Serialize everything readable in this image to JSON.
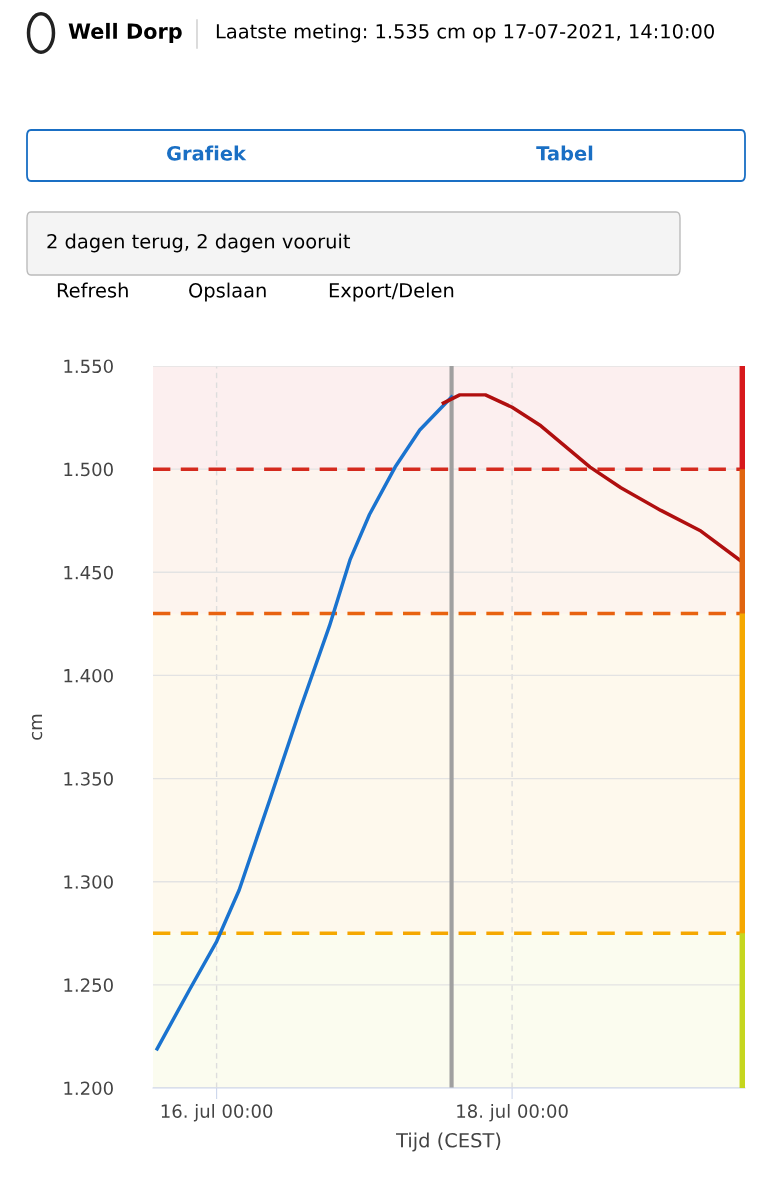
{
  "chart_data": {
    "type": "line",
    "title": "Well Dorp",
    "subtitle": "Laatste meting: 1.535 cm op 17-07-2021, 14:10:00",
    "annotations": [
      "Grafiek",
      "Tabel",
      "2 dagen terug, 2 dagen vooruit",
      "Refresh",
      "Opslaan",
      "Export/Delen"
    ],
    "xlabel": "Tijd (CEST)",
    "ylabel": "cm",
    "series": [
      {
        "color": "#1a73cf",
        "x": [
          "2021-07-15T14:20",
          "2021-07-15T19:40",
          "2021-07-16T00:00",
          "2021-07-16T03:40",
          "2021-07-16T08:40",
          "2021-07-16T13:30",
          "2021-07-16T18:20",
          "2021-07-16T21:40",
          "2021-07-17T00:50",
          "2021-07-17T05:00",
          "2021-07-17T09:00",
          "2021-07-17T14:10"
        ],
        "values": [
          1.219,
          1.248,
          1.271,
          1.296,
          1.34,
          1.383,
          1.424,
          1.456,
          1.478,
          1.501,
          1.519,
          1.535
        ]
      },
      {
        "color": "#b00f0f",
        "x": [
          "2021-07-17T12:50",
          "2021-07-17T15:30",
          "2021-07-17T19:40",
          "2021-07-18T00:00",
          "2021-07-18T04:40",
          "2021-07-18T12:40",
          "2021-07-18T17:40",
          "2021-07-19T00:10",
          "2021-07-19T06:40",
          "2021-07-19T13:50"
        ],
        "values": [
          1.532,
          1.536,
          1.536,
          1.53,
          1.521,
          1.501,
          1.491,
          1.48,
          1.47,
          1.454
        ]
      }
    ],
    "xlim": [
      "2021-07-15T13:40",
      "2021-07-19T13:50"
    ],
    "xticks": [
      {
        "value": "2021-07-16T00:00",
        "label": "16. jul 00:00"
      },
      {
        "value": "2021-07-18T00:00",
        "label": "18. jul 00:00"
      }
    ],
    "ylim": [
      1.2,
      1.55
    ],
    "yticks": [
      {
        "value": 1.2,
        "label": "1.200"
      },
      {
        "value": 1.25,
        "label": "1.250"
      },
      {
        "value": 1.3,
        "label": "1.300"
      },
      {
        "value": 1.35,
        "label": "1.350"
      },
      {
        "value": 1.4,
        "label": "1.400"
      },
      {
        "value": 1.45,
        "label": "1.450"
      },
      {
        "value": 1.5,
        "label": "1.500"
      },
      {
        "value": 1.55,
        "label": "1.550"
      }
    ],
    "ref_lines": [
      {
        "axis": "y",
        "value": 1.5,
        "color": "#d42a1e",
        "line_style": "dashed"
      },
      {
        "axis": "y",
        "value": 1.43,
        "color": "#e8620f",
        "line_style": "dashed"
      },
      {
        "axis": "y",
        "value": 1.275,
        "color": "#f5a800",
        "line_style": "dashed"
      },
      {
        "axis": "x",
        "value": "2021-07-17T14:10",
        "color": "#a0a0a0",
        "line_style": "solid"
      }
    ],
    "bands": [
      {
        "axis": "y",
        "from": 1.5,
        "to": 1.55,
        "color": "#d7191c"
      },
      {
        "axis": "y",
        "from": 1.43,
        "to": 1.5,
        "color": "#e0640f"
      },
      {
        "axis": "y",
        "from": 1.275,
        "to": 1.43,
        "color": "#f5a800"
      },
      {
        "axis": "y",
        "from": 1.2,
        "to": 1.275,
        "color": "#c5d61f"
      }
    ],
    "grid": true,
    "line_style": "solid",
    "marker": "none"
  }
}
